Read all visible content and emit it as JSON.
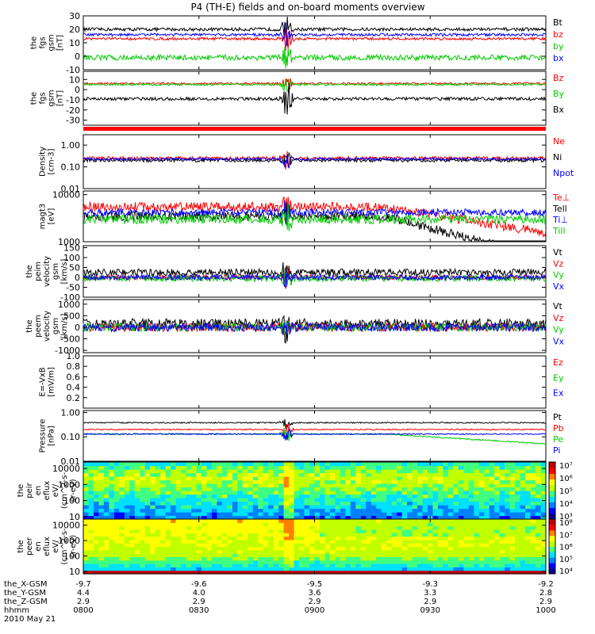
{
  "title": "P4 (TH-E) fields and on-board moments overview",
  "chart_data": {
    "type": "line",
    "title": "P4 (TH-E) fields and on-board moments overview",
    "xaxis": {
      "ticks": [
        "0800",
        "0830",
        "0900",
        "0930",
        "1000"
      ],
      "xlim": [
        "0800",
        "1000"
      ],
      "rows": [
        {
          "label": "the_X-GSM",
          "values": [
            "-9.7",
            "-9.6",
            "-9.5",
            "-9.3",
            "-9.2"
          ]
        },
        {
          "label": "the_Y-GSM",
          "values": [
            "4.4",
            "4.0",
            "3.6",
            "3.3",
            "2.8"
          ]
        },
        {
          "label": "the_Z-GSM",
          "values": [
            "2.9",
            "2.9",
            "2.9",
            "2.9",
            "2.9"
          ]
        },
        {
          "label": "hhmm",
          "values": [
            "0800",
            "0830",
            "0900",
            "0930",
            "1000"
          ]
        }
      ],
      "date": "2010 May 21"
    },
    "panels": [
      {
        "id": "fgs_gsm",
        "ylabel": [
          "the",
          "fgs",
          "gsm",
          "[nT]"
        ],
        "ticks": [
          "-10",
          "0",
          "10",
          "20",
          "30"
        ],
        "ylim": [
          -10,
          30
        ],
        "scale": "linear",
        "series": [
          {
            "name": "Bt",
            "color": "#000000",
            "base": 20,
            "amp": 1.2,
            "event": 12
          },
          {
            "name": "bz",
            "color": "#ff0000",
            "base": 13,
            "amp": 1.0,
            "event": 10
          },
          {
            "name": "by",
            "color": "#00cc00",
            "base": -1,
            "amp": 2.0,
            "event": 10
          },
          {
            "name": "bx",
            "color": "#0000ff",
            "base": 16,
            "amp": 1.0,
            "event": 10
          }
        ]
      },
      {
        "id": "fgs_gse",
        "ylabel": [
          "the",
          "fgs",
          "gsm",
          "[nT]"
        ],
        "ticks": [
          "-30",
          "-20",
          "-10",
          "0",
          "10"
        ],
        "ylim": [
          -35,
          18
        ],
        "scale": "linear",
        "series": [
          {
            "name": "Bz",
            "color": "#ff0000",
            "base": 6,
            "amp": 1.0,
            "event": 10
          },
          {
            "name": "By",
            "color": "#00cc00",
            "base": 5,
            "amp": 1.0,
            "event": 10
          },
          {
            "name": "Bx",
            "color": "#000000",
            "base": -9,
            "amp": 1.5,
            "event": 20
          }
        ]
      },
      {
        "id": "density",
        "ylabel": [
          "Density",
          "[cm-3]"
        ],
        "ticks": [
          "0.01",
          "0.10",
          "1.00"
        ],
        "ylim": [
          0.01,
          3
        ],
        "scale": "log",
        "series": [
          {
            "name": "Ne",
            "color": "#ff0000",
            "base": 0.25,
            "amp": 0.15,
            "event": 1.0
          },
          {
            "name": "Ni",
            "color": "#000000",
            "base": 0.2,
            "amp": 0.15,
            "event": 0.8
          },
          {
            "name": "Npot",
            "color": "#0000ff",
            "base": 0.23,
            "amp": 0.12,
            "event": 0.9
          }
        ]
      },
      {
        "id": "temperature",
        "ylabel": [
          "magt3",
          "[eV]"
        ],
        "ticks": [
          "1000",
          "10000"
        ],
        "ylim": [
          1000,
          12000
        ],
        "scale": "log",
        "series": [
          {
            "name": "Te⊥",
            "color": "#ff0000",
            "base": 5500,
            "amp": 0.2,
            "event": 0.5,
            "trend": -0.55
          },
          {
            "name": "Tell",
            "color": "#000000",
            "base": 3500,
            "amp": 0.2,
            "event": 0.6,
            "trend": -0.9
          },
          {
            "name": "Ti⊥",
            "color": "#0000ff",
            "base": 4200,
            "amp": 0.15,
            "event": 0.5
          },
          {
            "name": "Till",
            "color": "#00cc00",
            "base": 3000,
            "amp": 0.2,
            "event": 0.5
          }
        ]
      },
      {
        "id": "peim_velocity",
        "ylabel": [
          "the",
          "peim",
          "velocity",
          "gsm",
          "[km/s]"
        ],
        "ticks": [
          "-100",
          "-50",
          "0",
          "50",
          "100",
          "150"
        ],
        "ylim": [
          -100,
          160
        ],
        "scale": "linear",
        "series": [
          {
            "name": "Vt",
            "color": "#000000",
            "base": 25,
            "amp": 18,
            "event": 110
          },
          {
            "name": "Vz",
            "color": "#ff0000",
            "base": 0,
            "amp": 12,
            "event": 60
          },
          {
            "name": "Vy",
            "color": "#00cc00",
            "base": -5,
            "amp": 15,
            "event": 70
          },
          {
            "name": "Vx",
            "color": "#0000ff",
            "base": 0,
            "amp": 14,
            "event": 60
          }
        ]
      },
      {
        "id": "peem_velocity",
        "ylabel": [
          "the",
          "peem",
          "velocity",
          "gsm",
          "[km/s]"
        ],
        "ticks": [
          "-1000",
          "-500",
          "0",
          "500",
          "1000"
        ],
        "ylim": [
          -1100,
          1200
        ],
        "scale": "linear",
        "series": [
          {
            "name": "Vt",
            "color": "#000000",
            "base": 150,
            "amp": 220,
            "event": 900
          },
          {
            "name": "Vz",
            "color": "#ff0000",
            "base": 0,
            "amp": 180,
            "event": 500
          },
          {
            "name": "Vy",
            "color": "#00cc00",
            "base": 0,
            "amp": 180,
            "event": 500
          },
          {
            "name": "Vx",
            "color": "#0000ff",
            "base": 0,
            "amp": 180,
            "event": 500
          }
        ]
      },
      {
        "id": "efield",
        "ylabel": [
          "E=-VxB",
          "[mV/m]"
        ],
        "ticks": [
          "0.2",
          "0.4",
          "0.6",
          "0.8",
          "1.0"
        ],
        "ylim": [
          0,
          1
        ],
        "scale": "linear",
        "series": [
          {
            "name": "Ez",
            "color": "#ff0000",
            "empty": true
          },
          {
            "name": "Ey",
            "color": "#00cc00",
            "empty": true
          },
          {
            "name": "Ex",
            "color": "#0000ff",
            "empty": true
          }
        ]
      },
      {
        "id": "pressure",
        "ylabel": [
          "Pressure",
          "[nPa]"
        ],
        "ticks": [
          "0.01",
          "0.10",
          "1.00"
        ],
        "ylim": [
          0.01,
          1.2
        ],
        "scale": "log",
        "series": [
          {
            "name": "Pt",
            "color": "#000000",
            "base": 0.38,
            "amp": 0.05,
            "event": 0.5
          },
          {
            "name": "Pb",
            "color": "#ff0000",
            "base": 0.2,
            "amp": 0.05,
            "event": 0.6
          },
          {
            "name": "Pe",
            "color": "#00cc00",
            "base": 0.13,
            "amp": 0.05,
            "event": 0.6,
            "trend": -0.4
          },
          {
            "name": "Pi",
            "color": "#0000ff",
            "base": 0.13,
            "amp": 0.05,
            "event": 0.6
          }
        ]
      }
    ],
    "spectrograms": [
      {
        "id": "peir_en_eflux",
        "ylabel": [
          "the",
          "peir",
          "en",
          "eflux",
          "eV/",
          "(cm^2-s-",
          "sr-eV)"
        ],
        "ticks": [
          "10",
          "100",
          "1000",
          "10000"
        ],
        "ylim": [
          7,
          25000
        ],
        "scale": "log",
        "colorbar_ticks": [
          "10³",
          "10⁴",
          "10⁵",
          "10⁶",
          "10⁷"
        ]
      },
      {
        "id": "peer_en_eflux",
        "ylabel": [
          "the",
          "peer",
          "en",
          "eflux",
          "eV/",
          "(cm^2-s-",
          "sr-eV)"
        ],
        "ticks": [
          "10",
          "100",
          "1000",
          "10000"
        ],
        "ylim": [
          7,
          25000
        ],
        "scale": "log",
        "colorbar_ticks": [
          "10⁴",
          "10⁵",
          "10⁶",
          "10⁷",
          "10⁸"
        ]
      }
    ]
  }
}
